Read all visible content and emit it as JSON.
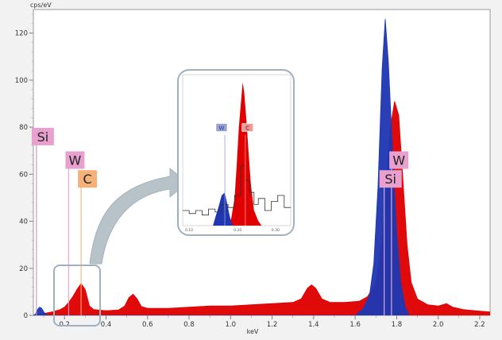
{
  "chart_data": {
    "type": "area",
    "ylabel": "cps/eV",
    "xlabel": "keV",
    "xlim": [
      0.05,
      2.25
    ],
    "ylim": [
      0,
      130
    ],
    "x_ticks": [
      0.2,
      0.4,
      0.6,
      0.8,
      1.0,
      1.2,
      1.4,
      1.6,
      1.8,
      2.0,
      2.2
    ],
    "x_tick_labels": [
      "0.2",
      "0.4",
      "0.6",
      "0.8",
      "1.0",
      "1.2",
      "1.4",
      "1.6",
      "1.8",
      "2.0",
      "2.2"
    ],
    "y_ticks": [
      0,
      20,
      40,
      60,
      80,
      100,
      120
    ],
    "y_tick_labels": [
      "0",
      "20",
      "40",
      "60",
      "80",
      "100",
      "120"
    ],
    "series": [
      {
        "color": "#e00000",
        "points": [
          [
            0.05,
            0
          ],
          [
            0.1,
            0.8
          ],
          [
            0.14,
            1.5
          ],
          [
            0.18,
            2.5
          ],
          [
            0.2,
            3.5
          ],
          [
            0.22,
            5.5
          ],
          [
            0.24,
            8
          ],
          [
            0.26,
            11
          ],
          [
            0.28,
            13.5
          ],
          [
            0.3,
            11
          ],
          [
            0.32,
            4
          ],
          [
            0.34,
            2.5
          ],
          [
            0.4,
            2
          ],
          [
            0.46,
            2.3
          ],
          [
            0.49,
            4
          ],
          [
            0.51,
            7.5
          ],
          [
            0.53,
            9
          ],
          [
            0.55,
            7
          ],
          [
            0.57,
            3.8
          ],
          [
            0.6,
            3
          ],
          [
            0.7,
            3
          ],
          [
            0.8,
            3.5
          ],
          [
            0.9,
            4
          ],
          [
            1.0,
            4
          ],
          [
            1.1,
            4.5
          ],
          [
            1.2,
            5
          ],
          [
            1.3,
            5.5
          ],
          [
            1.34,
            7
          ],
          [
            1.37,
            11.5
          ],
          [
            1.39,
            13
          ],
          [
            1.41,
            11.5
          ],
          [
            1.44,
            7
          ],
          [
            1.48,
            5.5
          ],
          [
            1.55,
            5.5
          ],
          [
            1.62,
            6
          ],
          [
            1.66,
            8
          ],
          [
            1.7,
            14
          ],
          [
            1.73,
            32
          ],
          [
            1.75,
            58
          ],
          [
            1.77,
            80
          ],
          [
            1.79,
            91
          ],
          [
            1.81,
            85
          ],
          [
            1.83,
            58
          ],
          [
            1.85,
            30
          ],
          [
            1.87,
            14
          ],
          [
            1.9,
            7
          ],
          [
            1.95,
            4.5
          ],
          [
            2.0,
            4
          ],
          [
            2.04,
            5
          ],
          [
            2.07,
            3.5
          ],
          [
            2.12,
            2.5
          ],
          [
            2.18,
            2
          ],
          [
            2.25,
            1.5
          ]
        ]
      },
      {
        "color": "#1f37b3",
        "points": [
          [
            0.05,
            0
          ],
          [
            0.06,
            0.5
          ],
          [
            0.07,
            2.5
          ],
          [
            0.08,
            3.5
          ],
          [
            0.09,
            3
          ],
          [
            0.1,
            1.5
          ],
          [
            0.11,
            0.5
          ],
          [
            0.12,
            0
          ],
          [
            1.6,
            0
          ],
          [
            1.64,
            3
          ],
          [
            1.67,
            9
          ],
          [
            1.69,
            22
          ],
          [
            1.71,
            55
          ],
          [
            1.73,
            105
          ],
          [
            1.745,
            126
          ],
          [
            1.76,
            108
          ],
          [
            1.78,
            70
          ],
          [
            1.8,
            35
          ],
          [
            1.82,
            14
          ],
          [
            1.84,
            4
          ],
          [
            1.86,
            0
          ]
        ]
      }
    ],
    "annotations": [
      {
        "text": "Si",
        "x": 0.065,
        "y": 76,
        "line_x": 0.065
      },
      {
        "text": "W",
        "x": 0.22,
        "y": 66,
        "line_x": 0.22
      },
      {
        "text": "C",
        "x": 0.28,
        "y": 58,
        "line_x": 0.28
      },
      {
        "text": "W",
        "x": 1.78,
        "y": 66,
        "line_x": 1.775
      },
      {
        "text": "Si",
        "x": 1.74,
        "y": 58,
        "line_x": 1.74
      }
    ],
    "inset": {
      "x_tick_labels": [
        "0.10",
        "0.20",
        "0.30"
      ],
      "annotations": [
        {
          "text": "W",
          "color": "#1f37b3"
        },
        {
          "text": "C",
          "color": "#e00000"
        }
      ]
    }
  },
  "colors": {
    "red_series": "#e00000",
    "blue_series": "#1f37b3",
    "label_pink": "#e8a0cf",
    "label_orange": "#f4b27a",
    "arrow": "#b7c2c9",
    "callout_border": "#9fb0be"
  }
}
